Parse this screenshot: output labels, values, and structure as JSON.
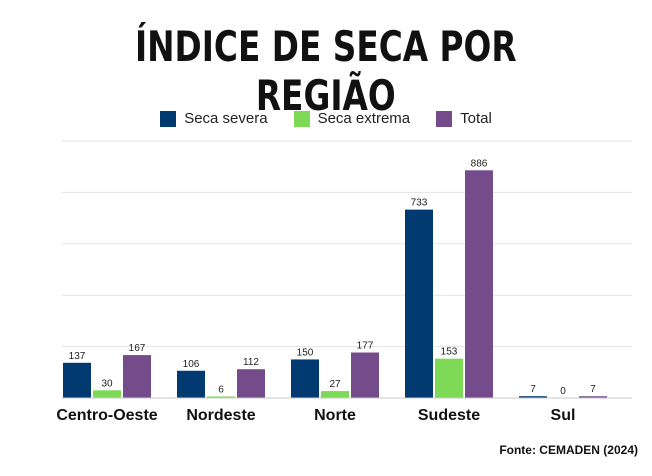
{
  "chart_data": {
    "type": "bar",
    "title": "ÍNDICE DE SECA POR REGIÃO",
    "categories": [
      "Centro-Oeste",
      "Nordeste",
      "Norte",
      "Sudeste",
      "Sul"
    ],
    "series": [
      {
        "name": "Seca severa",
        "color": "#003A70",
        "values": [
          137,
          106,
          150,
          733,
          7
        ]
      },
      {
        "name": "Seca extrema",
        "color": "#7ED957",
        "values": [
          30,
          6,
          27,
          153,
          0
        ]
      },
      {
        "name": "Total",
        "color": "#744C8C",
        "values": [
          167,
          112,
          177,
          886,
          7
        ]
      }
    ],
    "ylim": [
      0,
      1000
    ],
    "grid": true,
    "legend_position": "top-center",
    "source": "Fonte: CEMADEN (2024)"
  }
}
